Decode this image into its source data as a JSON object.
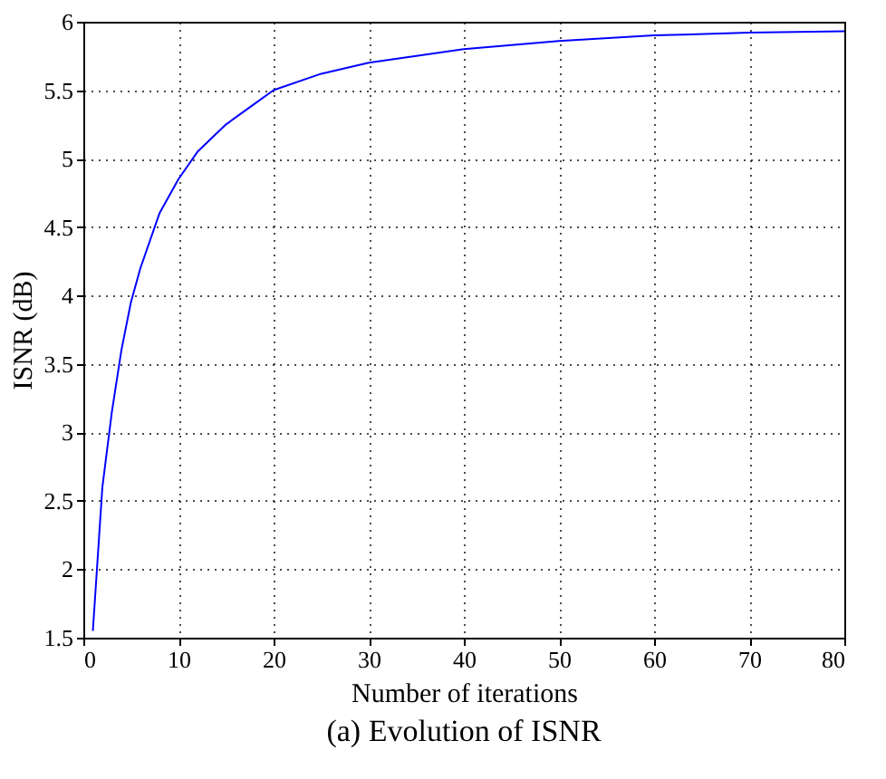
{
  "chart_data": {
    "type": "line",
    "title": "(a) Evolution of ISNR",
    "xlabel": "Number of iterations",
    "ylabel": "ISNR (dB)",
    "x": [
      1,
      2,
      3,
      4,
      5,
      6,
      8,
      10,
      12,
      15,
      18,
      20,
      25,
      30,
      35,
      40,
      50,
      60,
      70,
      80
    ],
    "series": [
      {
        "color": "#0000ff",
        "values": [
          1.55,
          2.6,
          3.15,
          3.6,
          3.95,
          4.2,
          4.6,
          4.85,
          5.05,
          5.25,
          5.4,
          5.5,
          5.62,
          5.7,
          5.75,
          5.8,
          5.86,
          5.9,
          5.92,
          5.93
        ]
      }
    ],
    "xlim": [
      0,
      80
    ],
    "xticks": [
      0,
      10,
      20,
      30,
      40,
      50,
      60,
      70,
      80
    ],
    "ylim": [
      1.5,
      6
    ],
    "yticks": [
      1.5,
      2,
      2.5,
      3,
      3.5,
      4,
      4.5,
      5,
      5.5,
      6
    ],
    "grid": true,
    "line_style": "solid",
    "marker": "none"
  }
}
